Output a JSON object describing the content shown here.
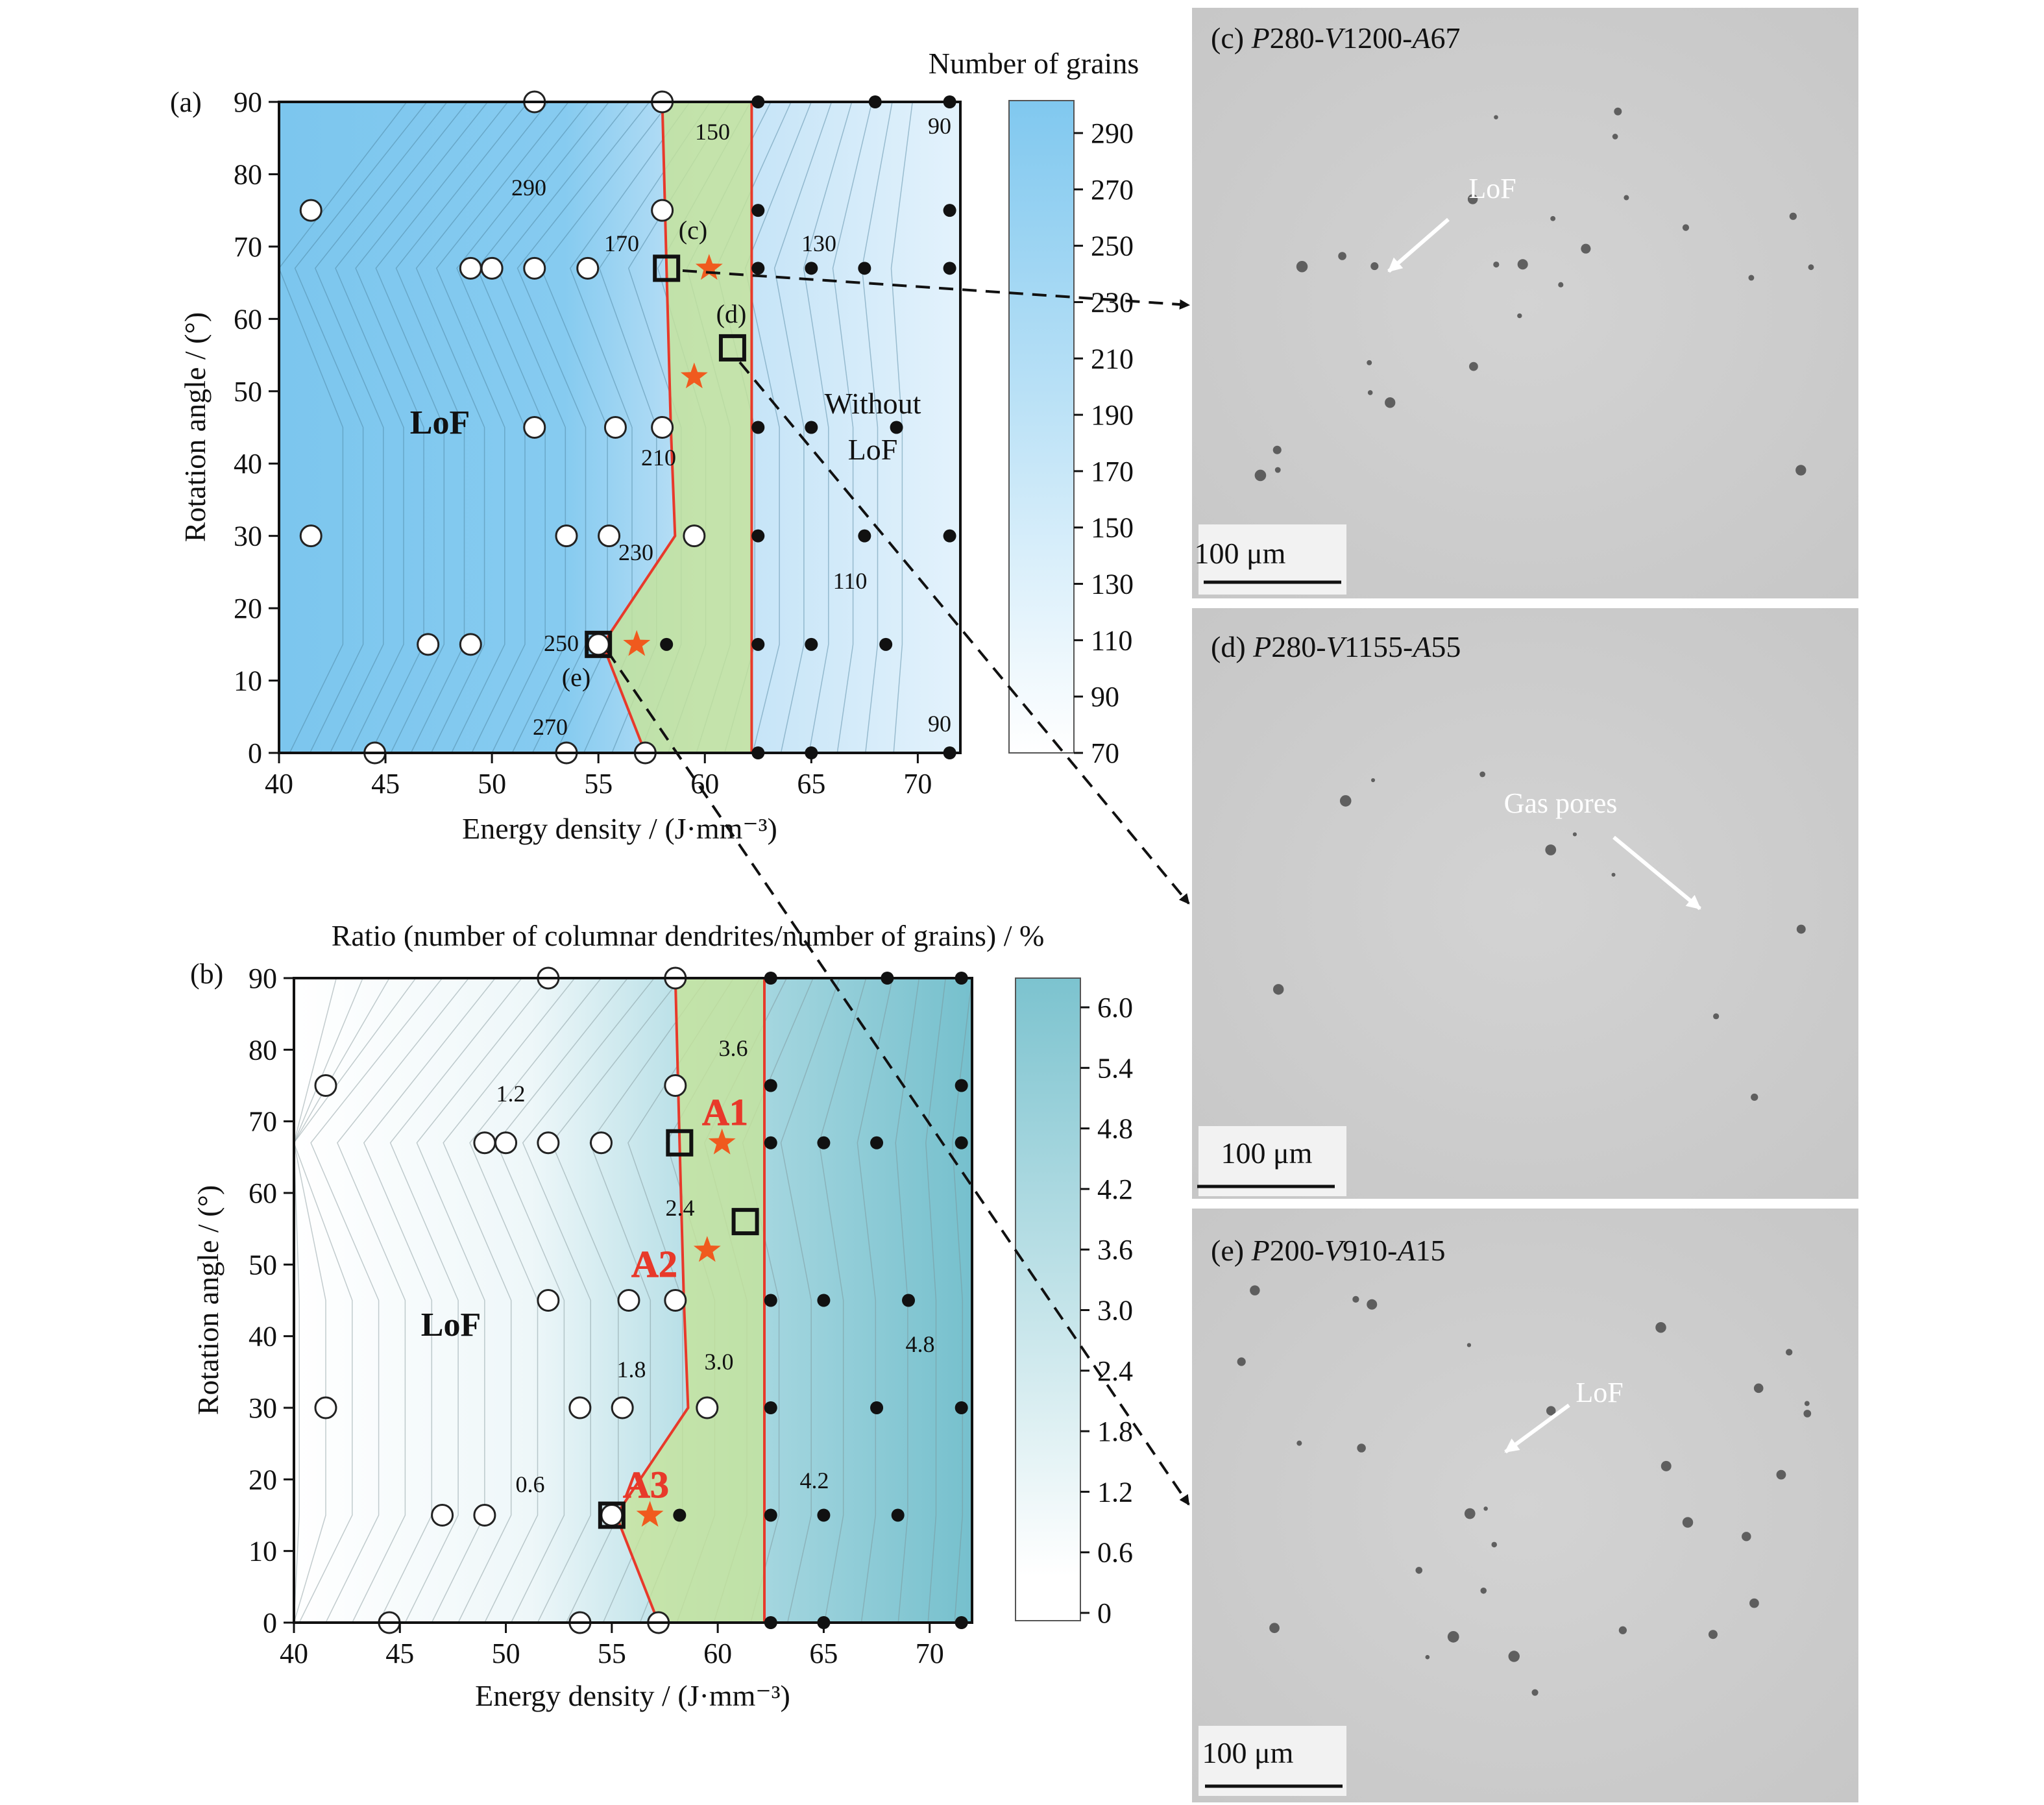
{
  "panel_a": {
    "letter": "(a)",
    "colorbar_title": "Number of grains",
    "colorbar_ticks": [
      "290",
      "270",
      "250",
      "230",
      "210",
      "190",
      "170",
      "150",
      "130",
      "110",
      "90",
      "70"
    ],
    "region_label_lof": "LoF",
    "region_label_without": [
      "Without",
      "LoF"
    ],
    "contour_labels": [
      "290",
      "170",
      "150",
      "130",
      "210",
      "230",
      "250",
      "270",
      "110",
      "90",
      "90"
    ],
    "box_labels": [
      "(c)",
      "(d)",
      "(e)"
    ]
  },
  "panel_b": {
    "letter": "(b)",
    "colorbar_title": "Ratio (number of columnar dendrites/number of grains) / %",
    "colorbar_ticks": [
      "6.0",
      "5.4",
      "4.8",
      "4.2",
      "3.6",
      "3.0",
      "2.4",
      "1.8",
      "1.2",
      "0.6",
      "0"
    ],
    "region_label_lof": "LoF",
    "contour_labels": [
      "1.2",
      "3.6",
      "2.4",
      "1.8",
      "3.0",
      "4.8",
      "0.6",
      "4.2"
    ],
    "star_labels": [
      "A1",
      "A2",
      "A3"
    ]
  },
  "micrographs": [
    {
      "letter": "(c) ",
      "p": "P",
      "pv": "280-",
      "v": "V",
      "vv": "1200-",
      "a": "A",
      "av": "67",
      "annotation": "LoF",
      "scale": "100 μm"
    },
    {
      "letter": "(d) ",
      "p": "P",
      "pv": "280-",
      "v": "V",
      "vv": "1155-",
      "a": "A",
      "av": "55",
      "annotation": "Gas pores",
      "scale": "100 μm"
    },
    {
      "letter": "(e) ",
      "p": "P",
      "pv": "200-",
      "v": "V",
      "vv": "910-",
      "a": "A",
      "av": "15",
      "annotation": "LoF",
      "scale": "100 μm"
    }
  ],
  "colors": {
    "lof_blue": "#7cc6ee",
    "ratio_teal": "#7fc3cf",
    "process_window": "#c5e39a",
    "window_edge": "#e8392a",
    "star": "#f05a1e"
  },
  "chart_data": [
    {
      "type": "heatmap",
      "title": "Number of grains",
      "xlabel": "Energy density / (J·mm⁻³)",
      "ylabel": "Rotation angle / (°)",
      "xlim": [
        40,
        72
      ],
      "ylim": [
        0,
        90
      ],
      "x_ticks": [
        40,
        45,
        50,
        55,
        60,
        65,
        70
      ],
      "y_ticks": [
        0,
        10,
        20,
        30,
        40,
        50,
        60,
        70,
        80,
        90
      ],
      "colorbar_range": [
        70,
        300
      ],
      "process_window": [
        [
          58.0,
          90
        ],
        [
          62.2,
          90
        ],
        [
          62.2,
          0
        ],
        [
          57.2,
          0
        ],
        [
          55.2,
          15
        ],
        [
          58.6,
          30
        ],
        [
          58.4,
          45
        ],
        [
          58.2,
          67
        ]
      ],
      "lof_boundary": [
        [
          58,
          90
        ],
        [
          51.8,
          67
        ],
        [
          55.0,
          30
        ],
        [
          55.0,
          15
        ],
        [
          52.5,
          0
        ]
      ],
      "open_points": [
        [
          52,
          90
        ],
        [
          58,
          90
        ],
        [
          41.5,
          75
        ],
        [
          58,
          75
        ],
        [
          49,
          67
        ],
        [
          50,
          67
        ],
        [
          52,
          67
        ],
        [
          54.5,
          67
        ],
        [
          52,
          45
        ],
        [
          55.8,
          45
        ],
        [
          58,
          45
        ],
        [
          41.5,
          30
        ],
        [
          53.5,
          30
        ],
        [
          55.5,
          30
        ],
        [
          59.5,
          30
        ],
        [
          47,
          15
        ],
        [
          49,
          15
        ],
        [
          55,
          15
        ],
        [
          44.5,
          0
        ],
        [
          53.5,
          0
        ],
        [
          57.2,
          0
        ]
      ],
      "filled_points": [
        [
          62.5,
          90
        ],
        [
          68,
          90
        ],
        [
          71.5,
          90
        ],
        [
          62.5,
          75
        ],
        [
          71.5,
          75
        ],
        [
          62.5,
          67
        ],
        [
          65,
          67
        ],
        [
          67.5,
          67
        ],
        [
          71.5,
          67
        ],
        [
          62.5,
          45
        ],
        [
          65,
          45
        ],
        [
          69,
          45
        ],
        [
          62.5,
          30
        ],
        [
          67.5,
          30
        ],
        [
          71.5,
          30
        ],
        [
          58.2,
          15
        ],
        [
          62.5,
          15
        ],
        [
          65,
          15
        ],
        [
          68.5,
          15
        ],
        [
          62.5,
          0
        ],
        [
          65,
          0
        ],
        [
          71.5,
          0
        ]
      ],
      "stars": [
        [
          60.2,
          67
        ],
        [
          59.5,
          52
        ],
        [
          56.8,
          15
        ]
      ],
      "boxes": [
        [
          58.2,
          67
        ],
        [
          61.3,
          56
        ],
        [
          55.0,
          15
        ]
      ]
    },
    {
      "type": "heatmap",
      "title": "Ratio (number of columnar dendrites/number of grains) / %",
      "xlabel": "Energy density / (J·mm⁻³)",
      "ylabel": "Rotation angle / (°)",
      "xlim": [
        40,
        72
      ],
      "ylim": [
        0,
        90
      ],
      "x_ticks": [
        40,
        45,
        50,
        55,
        60,
        65,
        70
      ],
      "y_ticks": [
        0,
        10,
        20,
        30,
        40,
        50,
        60,
        70,
        80,
        90
      ],
      "colorbar_range": [
        0,
        6.3
      ],
      "process_window": [
        [
          58.0,
          90
        ],
        [
          62.2,
          90
        ],
        [
          62.2,
          0
        ],
        [
          57.2,
          0
        ],
        [
          55.2,
          15
        ],
        [
          58.6,
          30
        ],
        [
          58.4,
          45
        ],
        [
          58.2,
          67
        ]
      ],
      "open_points": [
        [
          52,
          90
        ],
        [
          58,
          90
        ],
        [
          41.5,
          75
        ],
        [
          58,
          75
        ],
        [
          49,
          67
        ],
        [
          50,
          67
        ],
        [
          52,
          67
        ],
        [
          54.5,
          67
        ],
        [
          52,
          45
        ],
        [
          55.8,
          45
        ],
        [
          58,
          45
        ],
        [
          41.5,
          30
        ],
        [
          53.5,
          30
        ],
        [
          55.5,
          30
        ],
        [
          59.5,
          30
        ],
        [
          47,
          15
        ],
        [
          49,
          15
        ],
        [
          55,
          15
        ],
        [
          44.5,
          0
        ],
        [
          53.5,
          0
        ],
        [
          57.2,
          0
        ]
      ],
      "filled_points": [
        [
          62.5,
          90
        ],
        [
          68,
          90
        ],
        [
          71.5,
          90
        ],
        [
          62.5,
          75
        ],
        [
          71.5,
          75
        ],
        [
          62.5,
          67
        ],
        [
          65,
          67
        ],
        [
          67.5,
          67
        ],
        [
          71.5,
          67
        ],
        [
          62.5,
          45
        ],
        [
          65,
          45
        ],
        [
          69,
          45
        ],
        [
          62.5,
          30
        ],
        [
          67.5,
          30
        ],
        [
          71.5,
          30
        ],
        [
          58.2,
          15
        ],
        [
          62.5,
          15
        ],
        [
          65,
          15
        ],
        [
          68.5,
          15
        ],
        [
          62.5,
          0
        ],
        [
          65,
          0
        ],
        [
          71.5,
          0
        ]
      ],
      "stars": [
        [
          60.2,
          67
        ],
        [
          59.5,
          52
        ],
        [
          56.8,
          15
        ]
      ],
      "boxes": [
        [
          58.2,
          67
        ],
        [
          61.3,
          56
        ],
        [
          55.0,
          15
        ]
      ]
    }
  ]
}
